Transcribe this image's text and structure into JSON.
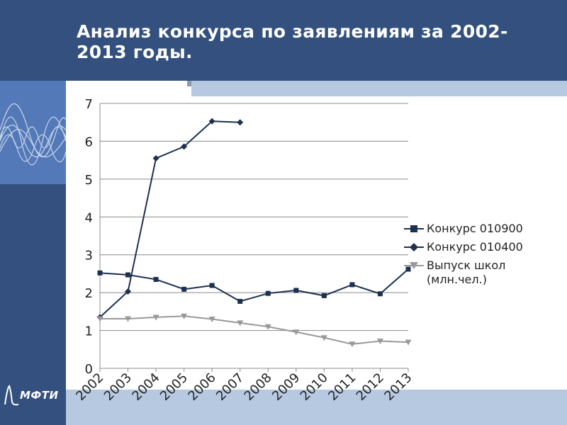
{
  "slide": {
    "title": "Анализ конкурса по заявлениям за 2002-2013 годы.",
    "logo_text": "МФТИ",
    "colors": {
      "header": "#33507f",
      "accent_strip": "#b6c9e1",
      "wave_tile": "#5479b8"
    }
  },
  "chart_data": {
    "type": "line",
    "title": "",
    "xlabel": "",
    "ylabel": "",
    "ylim": [
      0,
      7
    ],
    "yticks": [
      0,
      1,
      2,
      3,
      4,
      5,
      6,
      7
    ],
    "categories": [
      "2002",
      "2003",
      "2004",
      "2005",
      "2006",
      "2007",
      "2008",
      "2009",
      "2010",
      "2011",
      "2012",
      "2013"
    ],
    "grid": true,
    "legend_position": "right",
    "series": [
      {
        "name": "Конкурс 010900",
        "marker": "square",
        "color": "#1c3050",
        "values": [
          2.52,
          2.47,
          2.35,
          2.09,
          2.19,
          1.77,
          1.98,
          2.06,
          1.92,
          2.21,
          1.97,
          2.62
        ]
      },
      {
        "name": "Конкурс 010400",
        "marker": "diamond",
        "color": "#1c3050",
        "values": [
          1.35,
          2.03,
          5.55,
          5.86,
          6.53,
          6.5,
          null,
          null,
          null,
          null,
          null,
          null
        ]
      },
      {
        "name": "Выпуск школ (млн.чел.)",
        "marker": "triangle",
        "color": "#999999",
        "values": [
          1.31,
          1.31,
          1.35,
          1.38,
          1.3,
          1.2,
          1.1,
          0.96,
          0.81,
          0.64,
          0.72,
          0.69
        ]
      }
    ]
  }
}
